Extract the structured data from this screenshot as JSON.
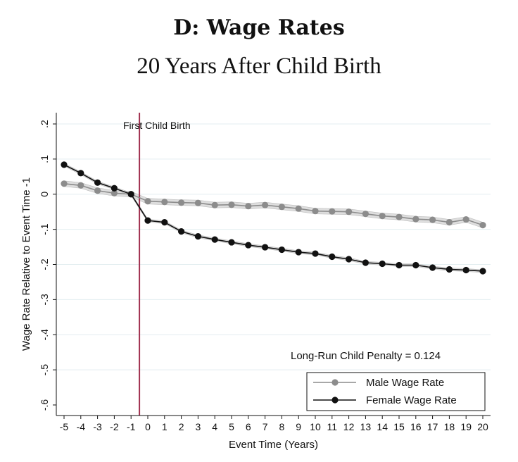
{
  "title": "D: Wage Rates",
  "subtitle": "20 Years After Child Birth",
  "chart_data": {
    "type": "line",
    "xlabel": "Event Time (Years)",
    "ylabel": "Wage Rate Relative to Event Time -1",
    "x": [
      -5,
      -4,
      -3,
      -2,
      -1,
      0,
      1,
      2,
      3,
      4,
      5,
      6,
      7,
      8,
      9,
      10,
      11,
      12,
      13,
      14,
      15,
      16,
      17,
      18,
      19,
      20
    ],
    "xlim": [
      -5,
      20
    ],
    "ylim": [
      -0.6,
      0.2
    ],
    "yticks": [
      0.2,
      0.1,
      0,
      -0.1,
      -0.2,
      -0.3,
      -0.4,
      -0.5,
      -0.6
    ],
    "ytick_labels": [
      ".2",
      ".1",
      "0",
      "-.1",
      "-.2",
      "-.3",
      "-.4",
      "-.5",
      "-.6"
    ],
    "xtick_labels": [
      "-5",
      "-4",
      "-3",
      "-2",
      "-1",
      "0",
      "1",
      "2",
      "3",
      "4",
      "5",
      "6",
      "7",
      "8",
      "9",
      "10",
      "11",
      "12",
      "13",
      "14",
      "15",
      "16",
      "17",
      "18",
      "19",
      "20"
    ],
    "grid": true,
    "event_line": {
      "x": -0.5,
      "label": "First Child Birth",
      "color": "#a0304f"
    },
    "annotation": "Long-Run Child Penalty = 0.124",
    "legend_position": "bottom-right",
    "series": [
      {
        "name": "Male Wage Rate",
        "color": "#8c8c8c",
        "ci_halfwidth": 0.008,
        "values": [
          0.03,
          0.025,
          0.01,
          0.003,
          0.0,
          -0.02,
          -0.022,
          -0.024,
          -0.025,
          -0.031,
          -0.03,
          -0.034,
          -0.031,
          -0.036,
          -0.041,
          -0.048,
          -0.049,
          -0.05,
          -0.056,
          -0.062,
          -0.065,
          -0.071,
          -0.073,
          -0.08,
          -0.072,
          -0.088
        ]
      },
      {
        "name": "Female Wage Rate",
        "color": "#111111",
        "ci_halfwidth": 0.004,
        "values": [
          0.084,
          0.06,
          0.033,
          0.017,
          0.0,
          -0.075,
          -0.08,
          -0.106,
          -0.12,
          -0.129,
          -0.137,
          -0.145,
          -0.151,
          -0.158,
          -0.165,
          -0.169,
          -0.178,
          -0.185,
          -0.195,
          -0.198,
          -0.202,
          -0.202,
          -0.209,
          -0.214,
          -0.216,
          -0.219
        ]
      }
    ]
  }
}
